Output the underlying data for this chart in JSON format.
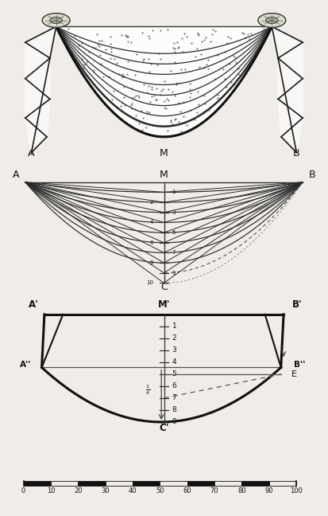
{
  "bg_color": "#f0ede8",
  "fig_width": 4.13,
  "fig_height": 6.48,
  "dpi": 100,
  "scale_values": [
    0,
    10,
    20,
    30,
    40,
    50,
    60,
    70,
    80,
    90,
    100
  ]
}
